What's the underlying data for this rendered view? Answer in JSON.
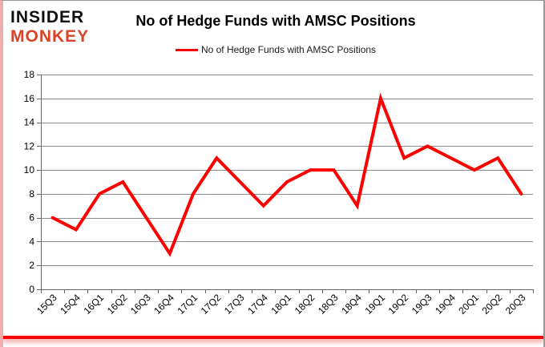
{
  "logo": {
    "line1": "INSIDER",
    "line2": "MONKEY"
  },
  "header": {
    "title": "No of Hedge Funds with AMSC Positions"
  },
  "legend": {
    "label": "No of Hedge Funds with AMSC Positions",
    "line_color": "#ff0000"
  },
  "chart_data": {
    "type": "line",
    "title": "No of Hedge Funds with AMSC Positions",
    "categories": [
      "15Q3",
      "15Q4",
      "16Q1",
      "16Q2",
      "16Q3",
      "16Q4",
      "17Q1",
      "17Q2",
      "17Q3",
      "17Q4",
      "18Q1",
      "18Q2",
      "18Q3",
      "18Q4",
      "19Q1",
      "19Q2",
      "19Q3",
      "19Q4",
      "20Q1",
      "20Q2",
      "20Q3"
    ],
    "series": [
      {
        "name": "No of Hedge Funds with AMSC Positions",
        "color": "#ff0000",
        "values": [
          6,
          5,
          8,
          9,
          6,
          3,
          8,
          11,
          9,
          7,
          9,
          10,
          10,
          7,
          16,
          11,
          12,
          11,
          10,
          11,
          8
        ]
      }
    ],
    "xlabel": "",
    "ylabel": "",
    "ylim": [
      0,
      18
    ],
    "ytick_step": 2,
    "grid": true,
    "legend_position": "top-center",
    "gridline_color": "#8c8c8c",
    "axis_color": "#666666",
    "label_color": "#000000"
  },
  "colors": {
    "logo_red": "#d8432c",
    "accent_red": "#ff0000",
    "frame_pink": "#efacac",
    "frame_gray": "#919191"
  }
}
